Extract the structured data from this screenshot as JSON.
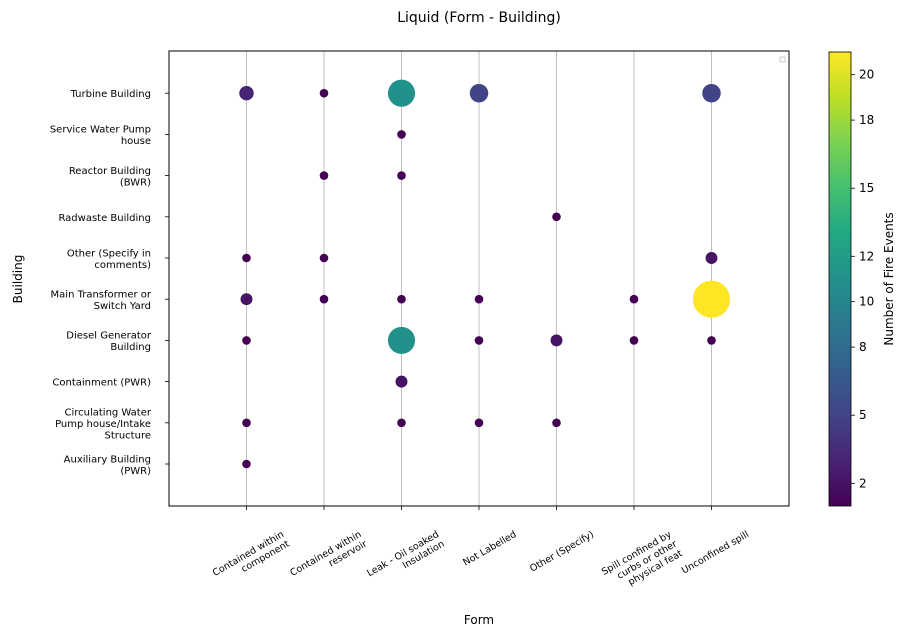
{
  "chart_data": {
    "type": "scatter",
    "title": "Liquid (Form - Building)",
    "xlabel": "Form",
    "ylabel": "Building",
    "x_categories": [
      [
        "Contained within",
        "component"
      ],
      [
        "Contained within",
        "reservoir"
      ],
      [
        "Leak - Oil soaked",
        "Insulation"
      ],
      [
        "Not Labelled"
      ],
      [
        "Other (Specify)"
      ],
      [
        "Spill confined by",
        "curbs or other",
        "physical feat"
      ],
      [
        "Unconfined spill"
      ]
    ],
    "y_categories": [
      [
        "Auxiliary Building",
        "(PWR)"
      ],
      [
        "Circulating Water",
        "Pump house/Intake",
        "Structure"
      ],
      [
        "Containment (PWR)"
      ],
      [
        "Diesel Generator",
        "Building"
      ],
      [
        "Main Transformer or",
        "Switch Yard"
      ],
      [
        "Other (Specify in",
        "comments)"
      ],
      [
        "Radwaste Building"
      ],
      [
        "Reactor Building",
        "(BWR)"
      ],
      [
        "Service Water Pump",
        "house"
      ],
      [
        "Turbine Building"
      ]
    ],
    "points": [
      {
        "x": 0,
        "y": 9,
        "value": 3
      },
      {
        "x": 1,
        "y": 9,
        "value": 1
      },
      {
        "x": 2,
        "y": 9,
        "value": 11
      },
      {
        "x": 3,
        "y": 9,
        "value": 5
      },
      {
        "x": 6,
        "y": 9,
        "value": 5
      },
      {
        "x": 2,
        "y": 8,
        "value": 1
      },
      {
        "x": 1,
        "y": 7,
        "value": 1
      },
      {
        "x": 2,
        "y": 7,
        "value": 1
      },
      {
        "x": 4,
        "y": 6,
        "value": 1
      },
      {
        "x": 0,
        "y": 5,
        "value": 1
      },
      {
        "x": 1,
        "y": 5,
        "value": 1
      },
      {
        "x": 6,
        "y": 5,
        "value": 2
      },
      {
        "x": 0,
        "y": 4,
        "value": 2
      },
      {
        "x": 1,
        "y": 4,
        "value": 1
      },
      {
        "x": 2,
        "y": 4,
        "value": 1
      },
      {
        "x": 3,
        "y": 4,
        "value": 1
      },
      {
        "x": 5,
        "y": 4,
        "value": 1
      },
      {
        "x": 6,
        "y": 4,
        "value": 21
      },
      {
        "x": 0,
        "y": 3,
        "value": 1
      },
      {
        "x": 2,
        "y": 3,
        "value": 11
      },
      {
        "x": 3,
        "y": 3,
        "value": 1
      },
      {
        "x": 4,
        "y": 3,
        "value": 2
      },
      {
        "x": 5,
        "y": 3,
        "value": 1
      },
      {
        "x": 6,
        "y": 3,
        "value": 1
      },
      {
        "x": 2,
        "y": 2,
        "value": 2
      },
      {
        "x": 0,
        "y": 1,
        "value": 1
      },
      {
        "x": 2,
        "y": 1,
        "value": 1
      },
      {
        "x": 3,
        "y": 1,
        "value": 1
      },
      {
        "x": 4,
        "y": 1,
        "value": 1
      },
      {
        "x": 0,
        "y": 0,
        "value": 1
      }
    ],
    "colorbar": {
      "label": "Number of Fire Events",
      "range": [
        1,
        21
      ],
      "ticks": [
        2,
        5,
        8,
        10,
        12,
        15,
        18,
        20
      ],
      "colormap": "viridis"
    },
    "grid": "vertical lines at x categories",
    "legend": "top-right (empty)"
  }
}
